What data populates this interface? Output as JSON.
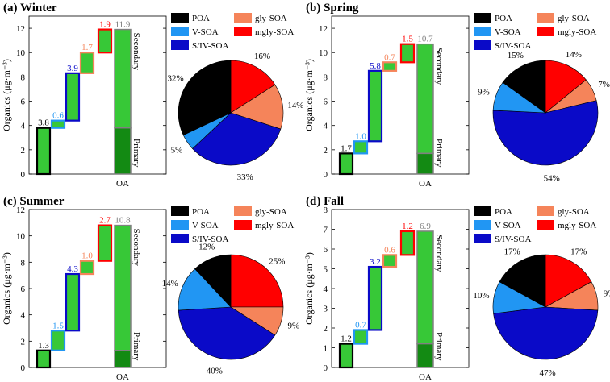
{
  "ylabel": "Organics (μg·m⁻³)",
  "xtick_label": "OA",
  "primary_label": "Primary",
  "secondary_label": "Secondary",
  "legend": [
    {
      "name": "POA",
      "color": "#000000"
    },
    {
      "name": "gly-SOA",
      "color": "#f5845a"
    },
    {
      "name": "V-SOA",
      "color": "#2196f3"
    },
    {
      "name": "mgly-SOA",
      "color": "#ff0000"
    },
    {
      "name": "S/IV-SOA",
      "color": "#0a0ac8"
    }
  ],
  "colors": {
    "step_fill": "#37c837",
    "oa_fill": "#37c837",
    "oa_primary": "#138a13",
    "oa_edge": "#808080",
    "POA": "#000000",
    "V-SOA": "#2196f3",
    "S/IV-SOA": "#0a0ac8",
    "gly-SOA": "#f5845a",
    "mgly-SOA": "#ff0000",
    "total_label": "#808080"
  },
  "chart_data": [
    {
      "type": "bar",
      "title": "(a) Winter",
      "ylim": [
        0,
        13
      ],
      "yticks": [
        0,
        2,
        4,
        6,
        8,
        10,
        12
      ],
      "categories": [
        "POA",
        "V-SOA",
        "S/IV-SOA",
        "gly-SOA",
        "mgly-SOA"
      ],
      "values": [
        3.8,
        0.6,
        3.9,
        1.7,
        1.9
      ],
      "total": 11.9,
      "pie": {
        "type": "pie",
        "labels": [
          "POA",
          "V-SOA",
          "S/IV-SOA",
          "gly-SOA",
          "mgly-SOA"
        ],
        "values": [
          32,
          5,
          33,
          14,
          16
        ]
      }
    },
    {
      "type": "bar",
      "title": "(b) Spring",
      "ylim": [
        0,
        13
      ],
      "yticks": [
        0,
        2,
        4,
        6,
        8,
        10,
        12
      ],
      "categories": [
        "POA",
        "V-SOA",
        "S/IV-SOA",
        "gly-SOA",
        "mgly-SOA"
      ],
      "values": [
        1.7,
        1.0,
        5.8,
        0.7,
        1.5
      ],
      "total": 10.7,
      "pie": {
        "type": "pie",
        "labels": [
          "POA",
          "V-SOA",
          "S/IV-SOA",
          "gly-SOA",
          "mgly-SOA"
        ],
        "values": [
          15,
          9,
          54,
          7,
          14
        ]
      }
    },
    {
      "type": "bar",
      "title": "(c) Summer",
      "ylim": [
        0,
        12
      ],
      "yticks": [
        0,
        2,
        4,
        6,
        8,
        10,
        12
      ],
      "categories": [
        "POA",
        "V-SOA",
        "S/IV-SOA",
        "gly-SOA",
        "mgly-SOA"
      ],
      "values": [
        1.3,
        1.5,
        4.3,
        1.0,
        2.7
      ],
      "total": 10.8,
      "pie": {
        "type": "pie",
        "labels": [
          "POA",
          "V-SOA",
          "S/IV-SOA",
          "gly-SOA",
          "mgly-SOA"
        ],
        "values": [
          12,
          14,
          40,
          9,
          25
        ]
      }
    },
    {
      "type": "bar",
      "title": "(d) Fall",
      "ylim": [
        0,
        8
      ],
      "yticks": [
        0,
        1,
        2,
        3,
        4,
        5,
        6,
        7,
        8
      ],
      "categories": [
        "POA",
        "V-SOA",
        "S/IV-SOA",
        "gly-SOA",
        "mgly-SOA"
      ],
      "values": [
        1.2,
        0.7,
        3.2,
        0.6,
        1.2
      ],
      "total": 6.9,
      "pie": {
        "type": "pie",
        "labels": [
          "POA",
          "V-SOA",
          "S/IV-SOA",
          "gly-SOA",
          "mgly-SOA"
        ],
        "values": [
          17,
          10,
          47,
          9,
          17
        ]
      }
    }
  ]
}
